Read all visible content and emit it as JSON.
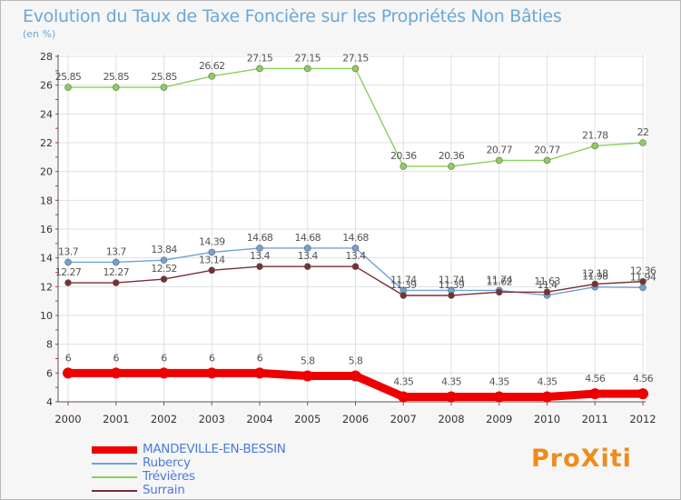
{
  "title": "Evolution du Taux de Taxe Foncière sur les Propriétés Non Bâties",
  "subtitle": "(en %)",
  "brand": "ProXiti",
  "chart_data": {
    "type": "line",
    "x": [
      "2000",
      "2001",
      "2002",
      "2003",
      "2004",
      "2005",
      "2006",
      "2007",
      "2008",
      "2009",
      "2010",
      "2011",
      "2012"
    ],
    "ylim": [
      4,
      28
    ],
    "yticks": [
      4,
      6,
      8,
      10,
      12,
      14,
      16,
      18,
      20,
      22,
      24,
      26,
      28
    ],
    "series": [
      {
        "name": "Trévières",
        "color": "#8ccf5a",
        "width": 1.4,
        "values": [
          25.85,
          25.85,
          25.85,
          26.62,
          27.15,
          27.15,
          27.15,
          20.36,
          20.36,
          20.77,
          20.77,
          21.78,
          22
        ],
        "labels": [
          "25.85",
          "25.85",
          "25.85",
          "26.62",
          "27.15",
          "27.15",
          "27.15",
          "20.36",
          "20.36",
          "20.77",
          "20.77",
          "21.78",
          "22"
        ]
      },
      {
        "name": "Rubercy",
        "color": "#6fa2d6",
        "width": 1.4,
        "values": [
          13.7,
          13.7,
          13.84,
          14.39,
          14.68,
          14.68,
          14.68,
          11.74,
          11.74,
          11.74,
          11.4,
          11.98,
          11.94
        ],
        "labels": [
          "13.7",
          "13.7",
          "13.84",
          "14.39",
          "14.68",
          "14.68",
          "14.68",
          "11.74",
          "11.74",
          "11.74",
          "11.4",
          "11.98",
          "11.94"
        ]
      },
      {
        "name": "Surrain",
        "color": "#7a2e36",
        "width": 1.4,
        "values": [
          12.27,
          12.27,
          12.52,
          13.14,
          13.4,
          13.4,
          13.4,
          11.39,
          11.39,
          11.62,
          11.63,
          12.18,
          12.36
        ],
        "labels": [
          "12.27",
          "12.27",
          "12.52",
          "13.14",
          "13.4",
          "13.4",
          "13.4",
          "11.39",
          "11.39",
          "11.62",
          "11.63",
          "12.18",
          "12.36"
        ]
      },
      {
        "name": "MANDEVILLE-EN-BESSIN",
        "color": "#ee0000",
        "width": 9,
        "values": [
          6,
          6,
          6,
          6,
          6,
          5.8,
          5.8,
          4.35,
          4.35,
          4.35,
          4.35,
          4.56,
          4.56
        ],
        "labels": [
          "6",
          "6",
          "6",
          "6",
          "6",
          "5.8",
          "5.8",
          "4.35",
          "4.35",
          "4.35",
          "4.35",
          "4.56",
          "4.56"
        ]
      }
    ],
    "legend": [
      {
        "name": "MANDEVILLE-EN-BESSIN",
        "color": "#ee0000",
        "thick": true
      },
      {
        "name": "Rubercy",
        "color": "#6fa2d6",
        "thick": false
      },
      {
        "name": "Trévières",
        "color": "#8ccf5a",
        "thick": false
      },
      {
        "name": "Surrain",
        "color": "#7a2e36",
        "thick": false
      }
    ]
  }
}
